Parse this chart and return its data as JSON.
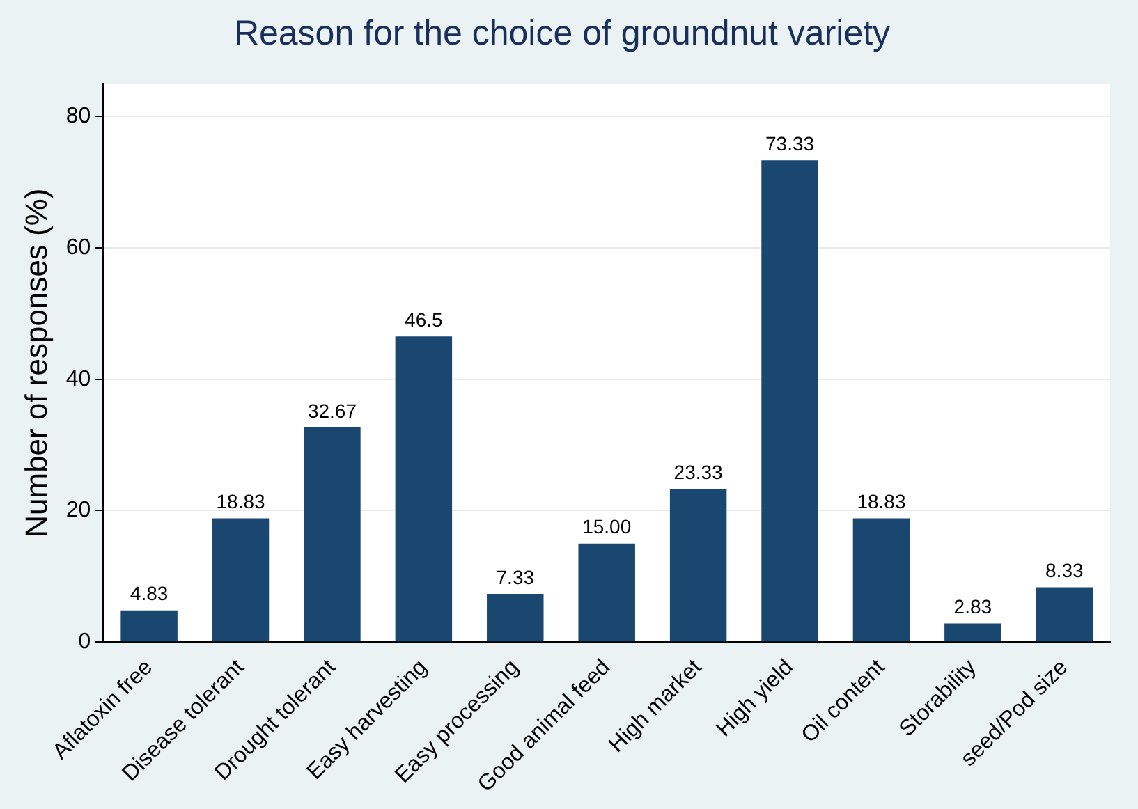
{
  "chart_data": {
    "type": "bar",
    "title": "Reason for the choice of groundnut variety",
    "ylabel": "Number of responses (%)",
    "categories": [
      "Aflatoxin free",
      "Disease tolerant",
      "Drought tolerant",
      "Easy harvesting",
      "Easy processing",
      "Good animal feed",
      "High market",
      "High yield",
      "Oil content",
      "Storability",
      "seed/Pod size"
    ],
    "values": [
      4.83,
      18.83,
      32.67,
      46.5,
      7.33,
      15.0,
      23.33,
      73.33,
      18.83,
      2.83,
      8.33
    ],
    "value_labels": [
      "4.83",
      "18.83",
      "32.67",
      "46.5",
      "7.33",
      "15.00",
      "23.33",
      "73.33",
      "18.83",
      "2.83",
      "8.33"
    ],
    "color": "#1a476f",
    "ylim": [
      0,
      85
    ],
    "yticks": [
      0,
      20,
      40,
      60,
      80
    ],
    "grid": "y",
    "legend": false
  }
}
